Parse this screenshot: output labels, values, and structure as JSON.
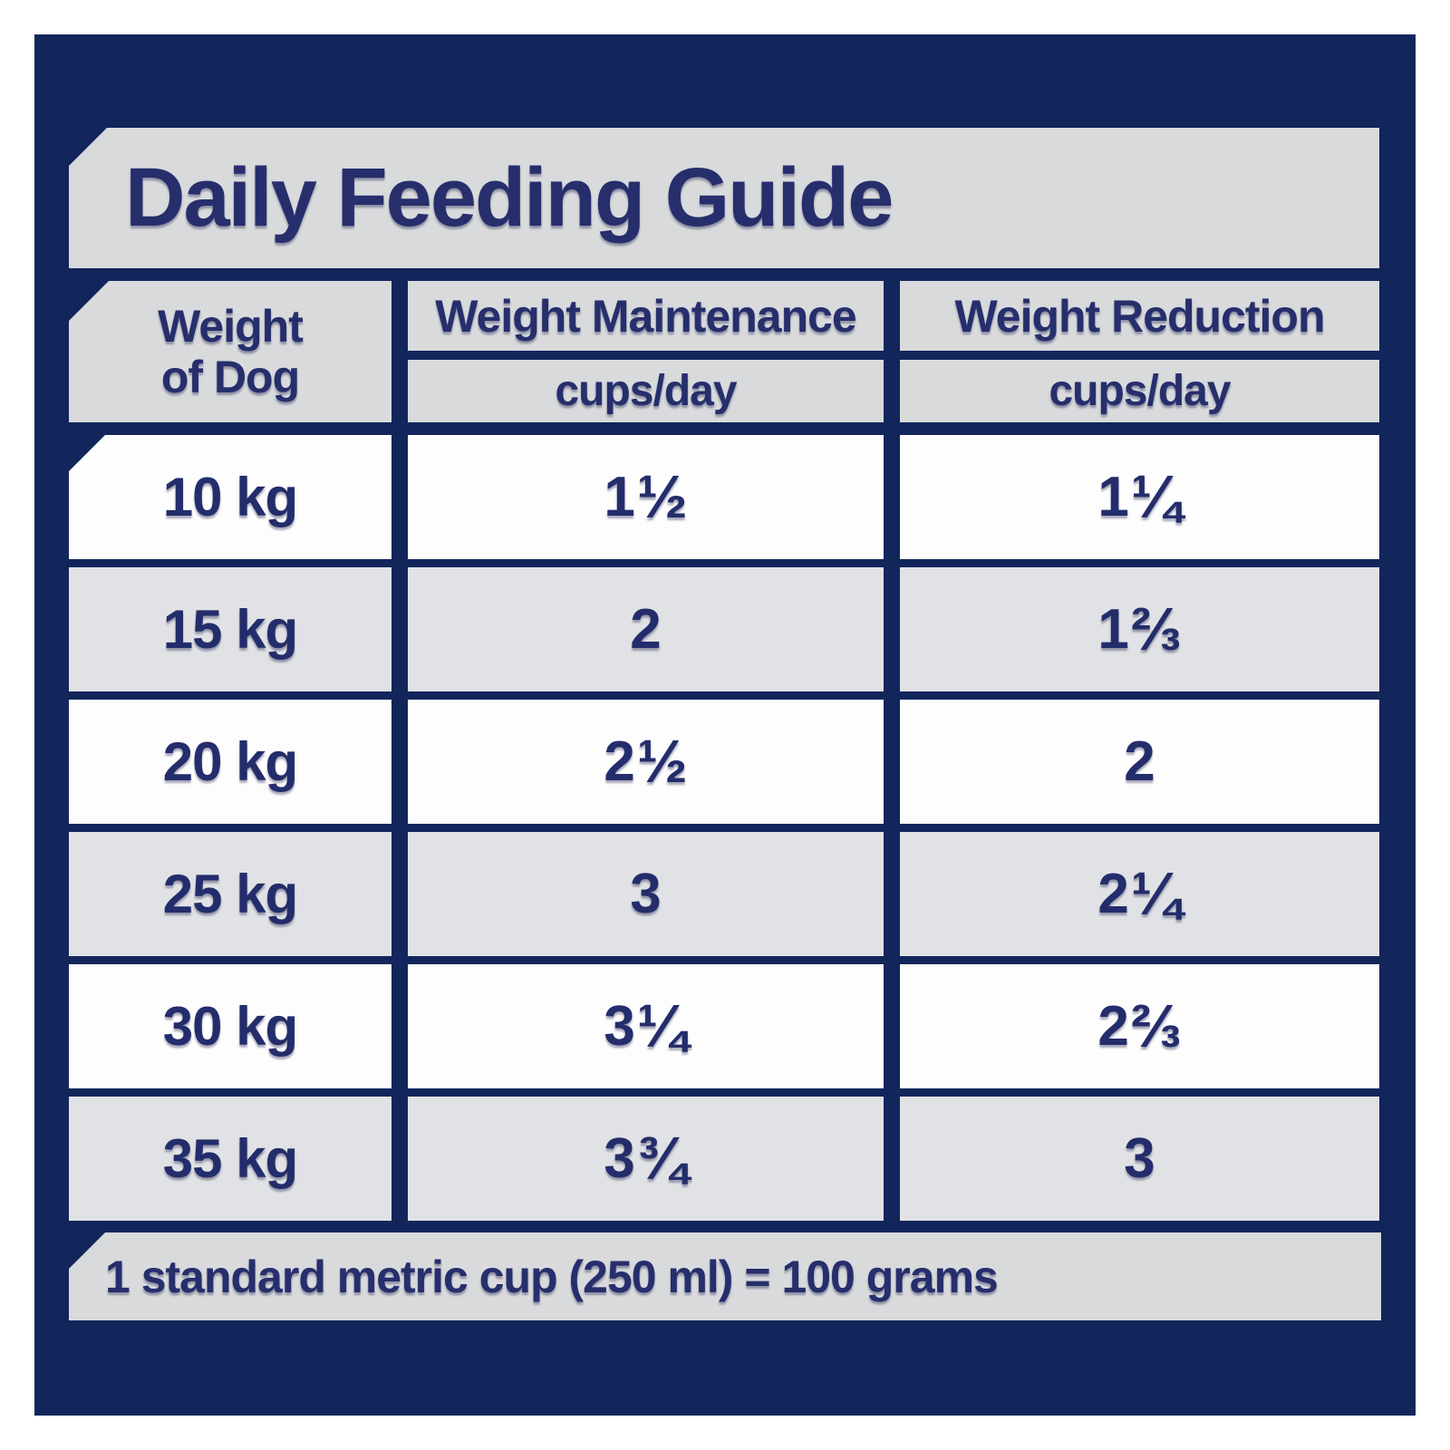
{
  "title": "Daily Feeding Guide",
  "colors": {
    "panel_navy": "#12265c",
    "banner_gray": "#d8dadc",
    "row_gray": "#e1e2e5",
    "row_white": "#fdfdfe",
    "text_navy": "#262e6c"
  },
  "table": {
    "col1_header": [
      "Weight",
      "of Dog"
    ],
    "col2_header": "Weight Maintenance",
    "col3_header": "Weight Reduction",
    "unit_label": "cups/day",
    "rows": [
      {
        "weight": "10 kg",
        "maintenance": "1 ½",
        "reduction": "1 ¼"
      },
      {
        "weight": "15 kg",
        "maintenance": "2",
        "reduction": "1 ⅔"
      },
      {
        "weight": "20 kg",
        "maintenance": "2 ½",
        "reduction": "2"
      },
      {
        "weight": "25 kg",
        "maintenance": "3",
        "reduction": "2 ¼"
      },
      {
        "weight": "30 kg",
        "maintenance": "3 ¼",
        "reduction": "2 ⅔"
      },
      {
        "weight": "35 kg",
        "maintenance": "3 ¾",
        "reduction": "3"
      }
    ]
  },
  "footer": {
    "note": "1 standard metric cup (250 ml) = 100 grams"
  },
  "chart_data": {
    "type": "table",
    "title": "Daily Feeding Guide",
    "columns": [
      "Weight of Dog",
      "Weight Maintenance (cups/day)",
      "Weight Reduction (cups/day)"
    ],
    "rows": [
      [
        "10 kg",
        "1 1/2",
        "1 1/4"
      ],
      [
        "15 kg",
        "2",
        "1 2/3"
      ],
      [
        "20 kg",
        "2 1/2",
        "2"
      ],
      [
        "25 kg",
        "3",
        "2 1/4"
      ],
      [
        "30 kg",
        "3 1/4",
        "2 2/3"
      ],
      [
        "35 kg",
        "3 3/4",
        "3"
      ]
    ],
    "note": "1 standard metric cup (250 ml) = 100 grams"
  }
}
